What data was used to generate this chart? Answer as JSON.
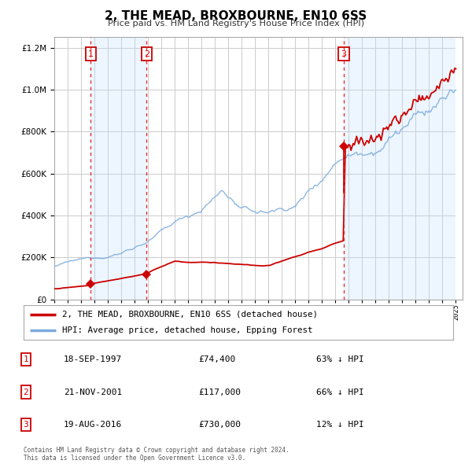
{
  "title": "2, THE MEAD, BROXBOURNE, EN10 6SS",
  "subtitle": "Price paid vs. HM Land Registry's House Price Index (HPI)",
  "sale_dates": [
    1997.72,
    2001.9,
    2016.63
  ],
  "sale_prices": [
    74400,
    117000,
    730000
  ],
  "sale_labels": [
    "1",
    "2",
    "3"
  ],
  "legend_entries": [
    {
      "label": "2, THE MEAD, BROXBOURNE, EN10 6SS (detached house)",
      "color": "#cc0000"
    },
    {
      "label": "HPI: Average price, detached house, Epping Forest",
      "color": "#7aaadd"
    }
  ],
  "table_rows": [
    {
      "num": "1",
      "date": "18-SEP-1997",
      "price": "£74,400",
      "pct": "63% ↓ HPI"
    },
    {
      "num": "2",
      "date": "21-NOV-2001",
      "price": "£117,000",
      "pct": "66% ↓ HPI"
    },
    {
      "num": "3",
      "date": "19-AUG-2016",
      "price": "£730,000",
      "pct": "12% ↓ HPI"
    }
  ],
  "footnote1": "Contains HM Land Registry data © Crown copyright and database right 2024.",
  "footnote2": "This data is licensed under the Open Government Licence v3.0.",
  "plot_bg_color": "#ffffff",
  "grid_color": "#cccccc",
  "shade_color": "#ddeeff",
  "ylim": [
    0,
    1250000
  ],
  "xlim_start": 1995.0,
  "xlim_end": 2025.5,
  "hpi_color": "#7aaadd",
  "prop_color": "#cc0000"
}
